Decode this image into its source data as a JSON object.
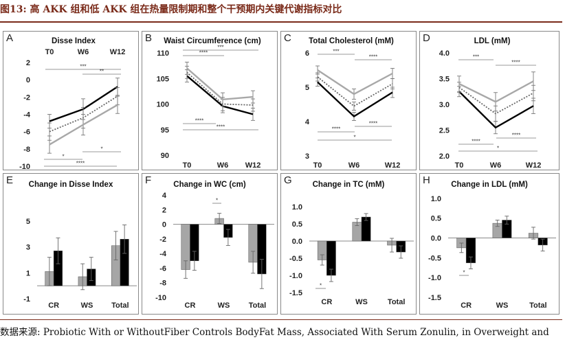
{
  "figure": {
    "title": "图13: 高 AKK 组和低 AKK 组在热量限制期和整个干预期内关键代谢指标对比",
    "source": "数据来源: Probiotic With or WithoutFiber Controls BodyFat Mass, Associated With Serum Zonulin, in Overweight and"
  },
  "chart_data": [
    {
      "type": "line",
      "panel": "A",
      "title": "Disse Index",
      "categories": [
        "T0",
        "W6",
        "W12"
      ],
      "yticks": [
        2,
        0,
        -2,
        -4,
        -6,
        -8,
        -10
      ],
      "ylim": [
        -10,
        2
      ],
      "series": [
        {
          "name": "black solid",
          "color": "#000000",
          "dash": "",
          "values": [
            -4.8,
            -3.4,
            -0.8
          ],
          "err": [
            0.8,
            1.2,
            1.0
          ]
        },
        {
          "name": "dotted",
          "color": "#666666",
          "dash": "2,2",
          "values": [
            -6.0,
            -4.4,
            -1.9
          ],
          "err": [
            1.0,
            1.2,
            1.0
          ]
        },
        {
          "name": "grey solid",
          "color": "#a8a8a8",
          "dash": "",
          "values": [
            -7.5,
            -5.2,
            -2.9
          ],
          "err": [
            1.0,
            1.2,
            1.0
          ]
        }
      ],
      "annotations": [
        "***",
        "**",
        "*",
        "*",
        "****"
      ]
    },
    {
      "type": "line",
      "panel": "B",
      "title": "Waist Circumference (cm)",
      "categories": [
        "T0",
        "W6",
        "W12"
      ],
      "yticks": [
        110,
        105,
        100,
        95,
        90
      ],
      "ylim": [
        90,
        110
      ],
      "series": [
        {
          "name": "black solid",
          "color": "#000000",
          "dash": "",
          "values": [
            105.5,
            99.6,
            98.0
          ],
          "err": [
            1.2,
            1.3,
            1.2
          ]
        },
        {
          "name": "dotted",
          "color": "#666666",
          "dash": "2,2",
          "values": [
            106.2,
            100.0,
            99.8
          ],
          "err": [
            1.2,
            1.3,
            1.2
          ]
        },
        {
          "name": "grey solid",
          "color": "#a8a8a8",
          "dash": "",
          "values": [
            107.0,
            100.9,
            101.4
          ],
          "err": [
            1.2,
            1.3,
            1.2
          ]
        }
      ],
      "annotations": [
        "***",
        "****",
        "****",
        "****"
      ]
    },
    {
      "type": "line",
      "panel": "C",
      "title": "Total Cholesterol (mM)",
      "categories": [
        "T0",
        "W6",
        "W12"
      ],
      "yticks": [
        6,
        5,
        4,
        3
      ],
      "ylim": [
        3,
        6
      ],
      "series": [
        {
          "name": "black solid",
          "color": "#000000",
          "dash": "",
          "values": [
            5.15,
            4.15,
            4.85
          ],
          "err": [
            0.12,
            0.12,
            0.15
          ]
        },
        {
          "name": "dotted",
          "color": "#666666",
          "dash": "2,2",
          "values": [
            5.3,
            4.45,
            5.1
          ],
          "err": [
            0.12,
            0.12,
            0.15
          ]
        },
        {
          "name": "grey solid",
          "color": "#a8a8a8",
          "dash": "",
          "values": [
            5.5,
            4.8,
            5.4
          ],
          "err": [
            0.12,
            0.15,
            0.15
          ]
        }
      ],
      "annotations": [
        "***",
        "****",
        "****",
        "****",
        "*"
      ]
    },
    {
      "type": "line",
      "panel": "D",
      "title": "LDL (mM)",
      "categories": [
        "T0",
        "W6",
        "W12"
      ],
      "yticks": [
        4.0,
        3.5,
        3.0,
        2.5,
        2.0
      ],
      "ylim": [
        2.0,
        4.0
      ],
      "series": [
        {
          "name": "black solid",
          "color": "#000000",
          "dash": "",
          "values": [
            3.25,
            2.55,
            2.97
          ],
          "err": [
            0.1,
            0.12,
            0.15
          ]
        },
        {
          "name": "dotted",
          "color": "#666666",
          "dash": "2,2",
          "values": [
            3.33,
            2.82,
            3.22
          ],
          "err": [
            0.1,
            0.15,
            0.15
          ]
        },
        {
          "name": "grey solid",
          "color": "#a8a8a8",
          "dash": "",
          "values": [
            3.4,
            3.05,
            3.45
          ],
          "err": [
            0.15,
            0.18,
            0.18
          ]
        }
      ],
      "annotations": [
        "***",
        "****",
        "****",
        "****",
        "*"
      ]
    },
    {
      "type": "bar",
      "panel": "E",
      "title": "Change in Disse Index",
      "categories": [
        "CR",
        "WS",
        "Total"
      ],
      "yticks": [
        5,
        3,
        1,
        -1
      ],
      "ylim": [
        -1,
        6
      ],
      "series": [
        {
          "name": "grey",
          "color": "#a6a6a6",
          "values": [
            1.1,
            0.7,
            3.1
          ],
          "err": [
            1.1,
            1.0,
            1.1
          ]
        },
        {
          "name": "black",
          "color": "#000000",
          "values": [
            2.7,
            1.3,
            3.6
          ],
          "err": [
            1.0,
            0.9,
            1.1
          ]
        }
      ],
      "annotations": []
    },
    {
      "type": "bar",
      "panel": "F",
      "title": "Change in WC (cm)",
      "categories": [
        "CR",
        "WS",
        "Total"
      ],
      "yticks": [
        4,
        2,
        0,
        -2,
        -4,
        -6,
        -8,
        -10
      ],
      "ylim": [
        -10,
        4
      ],
      "series": [
        {
          "name": "grey",
          "color": "#a6a6a6",
          "values": [
            -6.2,
            0.8,
            -5.2
          ],
          "err": [
            1.2,
            0.7,
            1.5
          ]
        },
        {
          "name": "black",
          "color": "#000000",
          "values": [
            -5.0,
            -1.8,
            -6.8
          ],
          "err": [
            1.3,
            1.1,
            2.0
          ]
        }
      ],
      "annotations": [
        "*"
      ]
    },
    {
      "type": "bar",
      "panel": "G",
      "title": "Change in TC (mM)",
      "categories": [
        "CR",
        "WS",
        "Total"
      ],
      "yticks": [
        1.0,
        0.5,
        0.0,
        -0.5,
        -1.0,
        -1.5
      ],
      "ylim": [
        -1.5,
        1.2
      ],
      "series": [
        {
          "name": "grey",
          "color": "#a6a6a6",
          "values": [
            -0.55,
            0.55,
            -0.12
          ],
          "err": [
            0.15,
            0.1,
            0.2
          ]
        },
        {
          "name": "black",
          "color": "#000000",
          "values": [
            -1.0,
            0.7,
            -0.32
          ],
          "err": [
            0.18,
            0.1,
            0.18
          ]
        }
      ],
      "annotations": [
        "*"
      ]
    },
    {
      "type": "bar",
      "panel": "H",
      "title": "Change in LDL (mM)",
      "categories": [
        "CR",
        "WS",
        "Total"
      ],
      "yticks": [
        1.0,
        0.5,
        0.0,
        -0.5,
        -1.0,
        -1.5
      ],
      "ylim": [
        -1.5,
        1.1
      ],
      "series": [
        {
          "name": "grey",
          "color": "#a6a6a6",
          "values": [
            -0.25,
            0.37,
            0.12
          ],
          "err": [
            0.12,
            0.08,
            0.15
          ]
        },
        {
          "name": "black",
          "color": "#000000",
          "values": [
            -0.63,
            0.45,
            -0.18
          ],
          "err": [
            0.15,
            0.1,
            0.15
          ]
        }
      ],
      "annotations": [
        "*"
      ]
    }
  ]
}
